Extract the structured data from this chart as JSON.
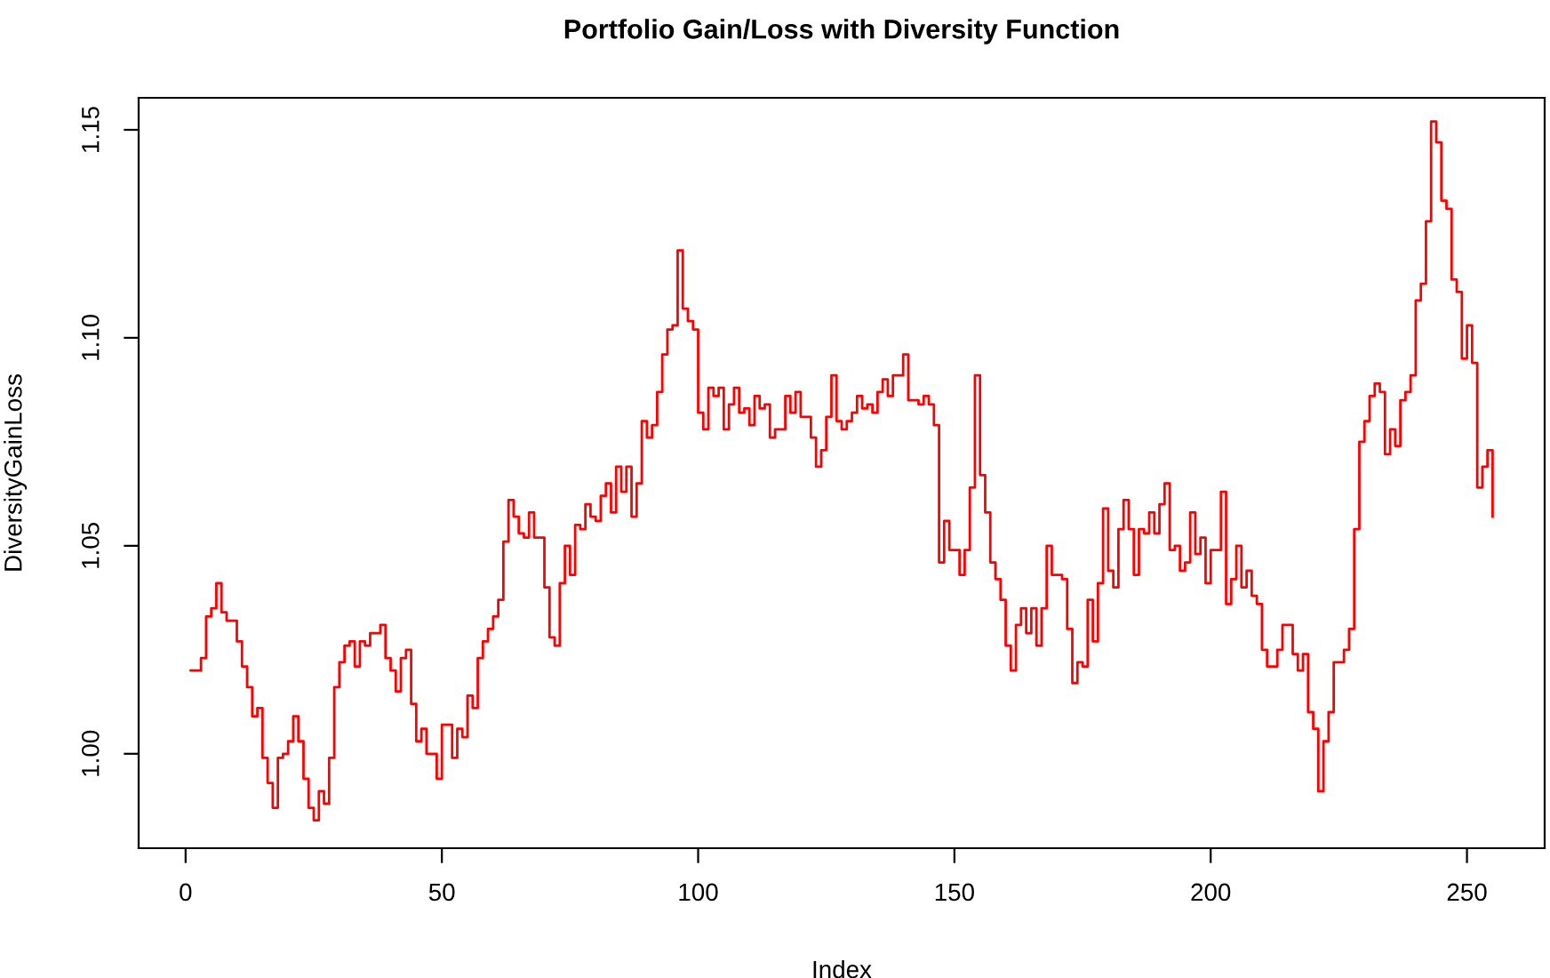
{
  "chart_data": {
    "type": "step",
    "title": "Portfolio Gain/Loss with Diversity Function",
    "xlabel": "Index",
    "ylabel": "DiversityGainLoss",
    "x": [
      1,
      2,
      3,
      4,
      5,
      6,
      7,
      8,
      9,
      10,
      11,
      12,
      13,
      14,
      15,
      16,
      17,
      18,
      19,
      20,
      21,
      22,
      23,
      24,
      25,
      26,
      27,
      28,
      29,
      30,
      31,
      32,
      33,
      34,
      35,
      36,
      37,
      38,
      39,
      40,
      41,
      42,
      43,
      44,
      45,
      46,
      47,
      48,
      49,
      50,
      51,
      52,
      53,
      54,
      55,
      56,
      57,
      58,
      59,
      60,
      61,
      62,
      63,
      64,
      65,
      66,
      67,
      68,
      69,
      70,
      71,
      72,
      73,
      74,
      75,
      76,
      77,
      78,
      79,
      80,
      81,
      82,
      83,
      84,
      85,
      86,
      87,
      88,
      89,
      90,
      91,
      92,
      93,
      94,
      95,
      96,
      97,
      98,
      99,
      100,
      101,
      102,
      103,
      104,
      105,
      106,
      107,
      108,
      109,
      110,
      111,
      112,
      113,
      114,
      115,
      116,
      117,
      118,
      119,
      120,
      121,
      122,
      123,
      124,
      125,
      126,
      127,
      128,
      129,
      130,
      131,
      132,
      133,
      134,
      135,
      136,
      137,
      138,
      139,
      140,
      141,
      142,
      143,
      144,
      145,
      146,
      147,
      148,
      149,
      150,
      151,
      152,
      153,
      154,
      155,
      156,
      157,
      158,
      159,
      160,
      161,
      162,
      163,
      164,
      165,
      166,
      167,
      168,
      169,
      170,
      171,
      172,
      173,
      174,
      175,
      176,
      177,
      178,
      179,
      180,
      181,
      182,
      183,
      184,
      185,
      186,
      187,
      188,
      189,
      190,
      191,
      192,
      193,
      194,
      195,
      196,
      197,
      198,
      199,
      200,
      201,
      202,
      203,
      204,
      205,
      206,
      207,
      208,
      209,
      210,
      211,
      212,
      213,
      214,
      215,
      216,
      217,
      218,
      219,
      220,
      221,
      222,
      223,
      224,
      225,
      226,
      227,
      228,
      229,
      230,
      231,
      232,
      233,
      234,
      235,
      236,
      237,
      238,
      239,
      240,
      241,
      242,
      243,
      244,
      245,
      246,
      247,
      248,
      249,
      250,
      251,
      252,
      253,
      254,
      255
    ],
    "series": [
      {
        "color": "#ff0000",
        "values": [
          1.02,
          1.02,
          1.023,
          1.033,
          1.035,
          1.041,
          1.034,
          1.032,
          1.032,
          1.027,
          1.021,
          1.016,
          1.009,
          1.011,
          0.999,
          0.993,
          0.987,
          0.999,
          1.0,
          1.003,
          1.009,
          1.003,
          0.994,
          0.987,
          0.984,
          0.991,
          0.988,
          0.999,
          1.016,
          1.022,
          1.026,
          1.027,
          1.021,
          1.027,
          1.026,
          1.029,
          1.029,
          1.031,
          1.023,
          1.02,
          1.015,
          1.023,
          1.025,
          1.012,
          1.003,
          1.006,
          1.0,
          1.0,
          0.994,
          1.007,
          1.007,
          0.999,
          1.006,
          1.004,
          1.014,
          1.011,
          1.023,
          1.027,
          1.03,
          1.033,
          1.037,
          1.051,
          1.061,
          1.057,
          1.053,
          1.052,
          1.058,
          1.052,
          1.052,
          1.04,
          1.028,
          1.026,
          1.041,
          1.05,
          1.043,
          1.055,
          1.054,
          1.06,
          1.057,
          1.056,
          1.062,
          1.065,
          1.058,
          1.069,
          1.063,
          1.069,
          1.057,
          1.065,
          1.08,
          1.076,
          1.079,
          1.087,
          1.096,
          1.102,
          1.103,
          1.121,
          1.107,
          1.104,
          1.102,
          1.082,
          1.078,
          1.088,
          1.086,
          1.088,
          1.078,
          1.084,
          1.088,
          1.082,
          1.083,
          1.079,
          1.086,
          1.083,
          1.084,
          1.076,
          1.078,
          1.078,
          1.086,
          1.082,
          1.087,
          1.081,
          1.081,
          1.076,
          1.069,
          1.073,
          1.081,
          1.091,
          1.08,
          1.078,
          1.08,
          1.082,
          1.086,
          1.083,
          1.084,
          1.082,
          1.087,
          1.09,
          1.086,
          1.091,
          1.091,
          1.096,
          1.085,
          1.085,
          1.084,
          1.086,
          1.084,
          1.079,
          1.046,
          1.056,
          1.049,
          1.049,
          1.043,
          1.049,
          1.064,
          1.091,
          1.067,
          1.058,
          1.046,
          1.042,
          1.037,
          1.026,
          1.02,
          1.031,
          1.035,
          1.029,
          1.035,
          1.026,
          1.035,
          1.05,
          1.043,
          1.043,
          1.042,
          1.03,
          1.017,
          1.022,
          1.021,
          1.037,
          1.027,
          1.041,
          1.059,
          1.044,
          1.04,
          1.054,
          1.061,
          1.054,
          1.043,
          1.054,
          1.053,
          1.058,
          1.053,
          1.06,
          1.065,
          1.049,
          1.05,
          1.044,
          1.046,
          1.058,
          1.048,
          1.052,
          1.041,
          1.049,
          1.049,
          1.063,
          1.036,
          1.042,
          1.05,
          1.04,
          1.044,
          1.038,
          1.036,
          1.025,
          1.021,
          1.021,
          1.025,
          1.031,
          1.031,
          1.024,
          1.02,
          1.024,
          1.01,
          1.006,
          0.991,
          1.003,
          1.01,
          1.022,
          1.022,
          1.025,
          1.03,
          1.054,
          1.075,
          1.08,
          1.086,
          1.089,
          1.087,
          1.072,
          1.078,
          1.074,
          1.085,
          1.087,
          1.091,
          1.109,
          1.113,
          1.128,
          1.152,
          1.147,
          1.133,
          1.131,
          1.114,
          1.111,
          1.095,
          1.103,
          1.094,
          1.064,
          1.069,
          1.073,
          1.057
        ]
      }
    ],
    "xlim": [
      -9.16,
      265.16
    ],
    "xticks": [
      0,
      50,
      100,
      150,
      200,
      250
    ],
    "ylim": [
      0.9773,
      1.1577
    ],
    "yticks": [
      {
        "value": 1.0,
        "label": "1.00"
      },
      {
        "value": 1.05,
        "label": "1.05"
      },
      {
        "value": 1.1,
        "label": "1.10"
      },
      {
        "value": 1.15,
        "label": "1.15"
      }
    ],
    "grid": false,
    "legend": false
  }
}
